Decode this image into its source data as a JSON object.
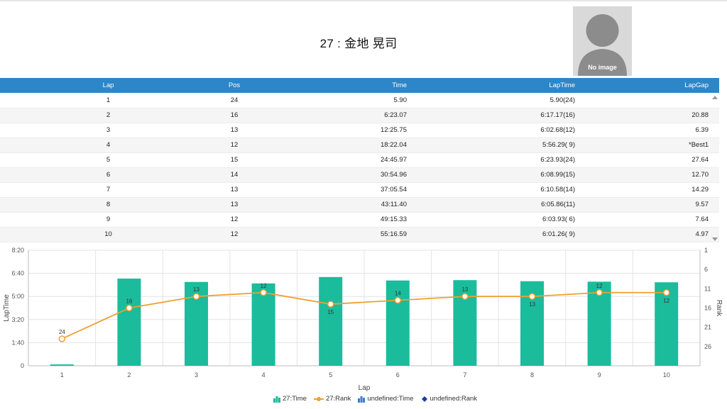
{
  "header": {
    "title": "27 : 金地 晃司",
    "photo_text": "No image"
  },
  "table": {
    "columns": [
      "Lap",
      "Pos",
      "Time",
      "LapTime",
      "LapGap"
    ],
    "rows": [
      [
        "1",
        "24",
        "5.90",
        "5.90(24)",
        ""
      ],
      [
        "2",
        "16",
        "6:23.07",
        "6:17.17(16)",
        "20.88"
      ],
      [
        "3",
        "13",
        "12:25.75",
        "6:02.68(12)",
        "6.39"
      ],
      [
        "4",
        "12",
        "18:22.04",
        "5:56.29( 9)",
        "*Best1"
      ],
      [
        "5",
        "15",
        "24:45.97",
        "6:23.93(24)",
        "27.64"
      ],
      [
        "6",
        "14",
        "30:54.96",
        "6:08.99(15)",
        "12.70"
      ],
      [
        "7",
        "13",
        "37:05.54",
        "6:10.58(14)",
        "14.29"
      ],
      [
        "8",
        "13",
        "43:11.40",
        "6:05.86(11)",
        "9.57"
      ],
      [
        "9",
        "12",
        "49:15.33",
        "6:03.93( 6)",
        "7.64"
      ],
      [
        "10",
        "12",
        "55:16.59",
        "6:01.26( 9)",
        "4.97"
      ]
    ]
  },
  "chart_data": {
    "type": "bar",
    "categories": [
      "1",
      "2",
      "3",
      "4",
      "5",
      "6",
      "7",
      "8",
      "9",
      "10"
    ],
    "xlabel": "Lap",
    "ylabel": "LapTime",
    "y2label": "Rank",
    "ylim_seconds": [
      0,
      500
    ],
    "y_ticks": [
      "0",
      "1:40",
      "3:20",
      "5:00",
      "6:40",
      "8:20"
    ],
    "y2_ticks": [
      "1",
      "6",
      "11",
      "16",
      "21",
      "26"
    ],
    "y2_range": [
      1,
      31
    ],
    "series": [
      {
        "name": "27:Time",
        "kind": "bar",
        "color": "#1abc9c",
        "values_seconds": [
          5.9,
          377.17,
          362.68,
          356.29,
          383.93,
          368.99,
          370.58,
          365.86,
          363.93,
          361.26
        ]
      },
      {
        "name": "27:Rank",
        "kind": "line",
        "color": "#f0a030",
        "values": [
          24,
          16,
          13,
          12,
          15,
          14,
          13,
          13,
          12,
          12
        ]
      }
    ],
    "legend": [
      {
        "name": "27:Time",
        "color": "#1abc9c",
        "shape": "bar"
      },
      {
        "name": "27:Rank",
        "color": "#f0a030",
        "shape": "line"
      },
      {
        "name": "undefined:Time",
        "color": "#3c7fd0",
        "shape": "bar"
      },
      {
        "name": "undefined:Rank",
        "color": "#1f3aa8",
        "shape": "diamond"
      }
    ]
  }
}
